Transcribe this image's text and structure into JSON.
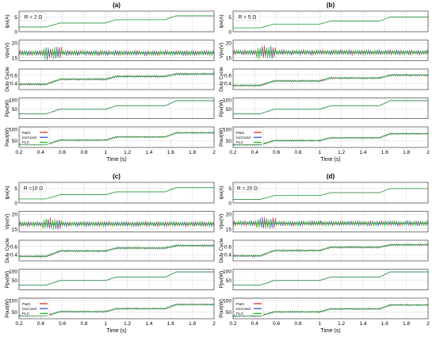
{
  "figure": {
    "x_axis_label": "Time (s)",
    "x_ticks": [
      "0.2",
      "0.4",
      "0.6",
      "0.8",
      "1",
      "1.2",
      "1.4",
      "1.6",
      "1.8",
      "2"
    ],
    "y_axis_labels": [
      "Ipv(A)",
      "Vpv(V)",
      "Duty Cycle",
      "Ppv(W)",
      "Pout(W)"
    ],
    "legend": [
      "P&O",
      "IncCond",
      "FLC"
    ],
    "colors": {
      "P&O": "#e31a1c",
      "IncCond": "#2d3fd8",
      "FLC": "#00cc00",
      "Ppv": "#2d8a4e",
      "frame": "#222222",
      "grid": "#d8d8d8"
    }
  },
  "chart_data": [
    {
      "type": "line",
      "panel": "(a)",
      "annotation": "R = 2 Ω",
      "x_range": [
        0.2,
        2
      ],
      "rows": [
        {
          "ylabel": "Ipv(A)",
          "ylim": [
            0,
            7
          ],
          "yticks": [
            "0",
            "5"
          ],
          "x": [
            0.2,
            0.45,
            0.58,
            1.0,
            1.1,
            1.55,
            1.65,
            2.0
          ],
          "y": [
            1.6,
            1.6,
            3.0,
            3.0,
            4.1,
            4.1,
            5.4,
            5.4
          ]
        },
        {
          "ylabel": "Vpv(V)",
          "ylim": [
            14,
            21
          ],
          "yticks": [
            "15",
            "20"
          ],
          "x": [
            0.2,
            2.0
          ],
          "y": [
            16.6,
            16.6
          ],
          "oscillation": "±1 V ripple, largest near 0.5 s"
        },
        {
          "ylabel": "Duty Cycle",
          "ylim": [
            0.25,
            0.75
          ],
          "yticks": [
            "0.4",
            "0.6"
          ],
          "x": [
            0.2,
            0.45,
            0.58,
            1.0,
            1.1,
            1.55,
            1.65,
            2.0
          ],
          "y": [
            0.38,
            0.38,
            0.5,
            0.5,
            0.57,
            0.57,
            0.63,
            0.63
          ]
        },
        {
          "ylabel": "Ppv(W)",
          "ylim": [
            0,
            110
          ],
          "yticks": [
            "50",
            "100"
          ],
          "x": [
            0.2,
            0.45,
            0.58,
            1.0,
            1.1,
            1.55,
            1.65,
            2.0
          ],
          "y": [
            25,
            25,
            50,
            50,
            68,
            68,
            95,
            95
          ]
        },
        {
          "ylabel": "Pout(W)",
          "ylim": [
            20,
            110
          ],
          "yticks": [
            "50",
            "100"
          ],
          "x": [
            0.2,
            0.45,
            0.58,
            1.0,
            1.1,
            1.55,
            1.65,
            2.0
          ],
          "y": [
            33,
            33,
            52,
            52,
            66,
            66,
            84,
            84
          ]
        }
      ]
    },
    {
      "type": "line",
      "panel": "(b)",
      "annotation": "R = 5 Ω",
      "x_range": [
        0.2,
        2
      ],
      "rows": [
        {
          "ylabel": "Ipv(A)",
          "ylim": [
            0,
            7
          ],
          "yticks": [
            "0",
            "5"
          ],
          "x": [
            0.2,
            0.45,
            0.58,
            1.0,
            1.1,
            1.55,
            1.65,
            2.0
          ],
          "y": [
            1.3,
            1.3,
            2.6,
            2.6,
            3.6,
            3.6,
            5.0,
            5.0
          ]
        },
        {
          "ylabel": "Vpv(V)",
          "ylim": [
            14,
            21
          ],
          "yticks": [
            "15",
            "20"
          ],
          "x": [
            0.2,
            2.0
          ],
          "y": [
            16.8,
            16.8
          ],
          "oscillation": "±1.2 V ripple, largest near 0.5 s"
        },
        {
          "ylabel": "Duty Cycle",
          "ylim": [
            0.25,
            0.75
          ],
          "yticks": [
            "0.4",
            "0.6"
          ],
          "x": [
            0.2,
            0.45,
            0.58,
            1.0,
            1.1,
            1.55,
            1.65,
            2.0
          ],
          "y": [
            0.35,
            0.35,
            0.46,
            0.46,
            0.53,
            0.53,
            0.6,
            0.6
          ]
        },
        {
          "ylabel": "Ppv(W)",
          "ylim": [
            0,
            110
          ],
          "yticks": [
            "50",
            "100"
          ],
          "x": [
            0.2,
            0.45,
            0.58,
            1.0,
            1.1,
            1.55,
            1.65,
            2.0
          ],
          "y": [
            25,
            25,
            50,
            50,
            68,
            68,
            95,
            95
          ]
        },
        {
          "ylabel": "Pout(W)",
          "ylim": [
            20,
            110
          ],
          "yticks": [
            "50",
            "100"
          ],
          "x": [
            0.2,
            0.45,
            0.58,
            1.0,
            1.1,
            1.55,
            1.65,
            2.0
          ],
          "y": [
            32,
            32,
            50,
            50,
            62,
            62,
            80,
            80
          ]
        }
      ]
    },
    {
      "type": "line",
      "panel": "(c)",
      "annotation": "R =10 Ω",
      "x_range": [
        0.2,
        2
      ],
      "rows": [
        {
          "ylabel": "Ipv(A)",
          "ylim": [
            0,
            7
          ],
          "yticks": [
            "0",
            "5"
          ],
          "x": [
            0.2,
            0.45,
            0.58,
            1.0,
            1.1,
            1.55,
            1.65,
            2.0
          ],
          "y": [
            1.4,
            1.4,
            2.8,
            2.8,
            3.8,
            3.8,
            5.2,
            5.2
          ]
        },
        {
          "ylabel": "Vpv(V)",
          "ylim": [
            14,
            21
          ],
          "yticks": [
            "15",
            "20"
          ],
          "x": [
            0.2,
            2.0
          ],
          "y": [
            16.7,
            16.7
          ],
          "oscillation": "±1.3 V ripple, largest near 0.5 s"
        },
        {
          "ylabel": "Duty Cycle",
          "ylim": [
            0.25,
            0.75
          ],
          "yticks": [
            "0.4",
            "0.6"
          ],
          "x": [
            0.2,
            0.45,
            0.58,
            1.0,
            1.1,
            1.55,
            1.65,
            2.0
          ],
          "y": [
            0.36,
            0.36,
            0.49,
            0.49,
            0.56,
            0.56,
            0.62,
            0.62
          ]
        },
        {
          "ylabel": "Ppv(W)",
          "ylim": [
            0,
            110
          ],
          "yticks": [
            "50",
            "100"
          ],
          "x": [
            0.2,
            0.45,
            0.58,
            1.0,
            1.1,
            1.55,
            1.65,
            2.0
          ],
          "y": [
            25,
            25,
            50,
            50,
            68,
            68,
            95,
            95
          ]
        },
        {
          "ylabel": "Pout(W)",
          "ylim": [
            20,
            110
          ],
          "yticks": [
            "50",
            "100"
          ],
          "x": [
            0.2,
            0.45,
            0.58,
            1.0,
            1.1,
            1.55,
            1.65,
            2.0
          ],
          "y": [
            33,
            33,
            51,
            51,
            64,
            64,
            82,
            82
          ]
        }
      ]
    },
    {
      "type": "line",
      "panel": "(d)",
      "annotation": "R = 20 Ω",
      "x_range": [
        0.2,
        2
      ],
      "rows": [
        {
          "ylabel": "Ipv(A)",
          "ylim": [
            0,
            7
          ],
          "yticks": [
            "0",
            "5"
          ],
          "x": [
            0.2,
            0.45,
            0.58,
            1.0,
            1.1,
            1.55,
            1.65,
            2.0
          ],
          "y": [
            1.2,
            1.2,
            2.5,
            2.5,
            3.5,
            3.5,
            4.9,
            4.9
          ]
        },
        {
          "ylabel": "Vpv(V)",
          "ylim": [
            14,
            21
          ],
          "yticks": [
            "15",
            "20"
          ],
          "x": [
            0.2,
            2.0
          ],
          "y": [
            16.9,
            16.9
          ],
          "oscillation": "±1.5 V ripple, growing after 1 s"
        },
        {
          "ylabel": "Duty Cycle",
          "ylim": [
            0.25,
            0.75
          ],
          "yticks": [
            "0.4",
            "0.6"
          ],
          "x": [
            0.2,
            0.45,
            0.58,
            1.0,
            1.1,
            1.55,
            1.65,
            2.0
          ],
          "y": [
            0.37,
            0.37,
            0.5,
            0.5,
            0.58,
            0.58,
            0.64,
            0.64
          ]
        },
        {
          "ylabel": "Ppv(W)",
          "ylim": [
            0,
            110
          ],
          "yticks": [
            "50",
            "100"
          ],
          "x": [
            0.2,
            0.45,
            0.58,
            1.0,
            1.1,
            1.55,
            1.65,
            2.0
          ],
          "y": [
            25,
            25,
            50,
            50,
            68,
            68,
            95,
            95
          ]
        },
        {
          "ylabel": "Pout(W)",
          "ylim": [
            20,
            110
          ],
          "yticks": [
            "50",
            "100"
          ],
          "x": [
            0.2,
            0.45,
            0.58,
            1.0,
            1.1,
            1.55,
            1.65,
            2.0
          ],
          "y": [
            32,
            32,
            50,
            50,
            63,
            63,
            80,
            80
          ]
        }
      ]
    }
  ]
}
